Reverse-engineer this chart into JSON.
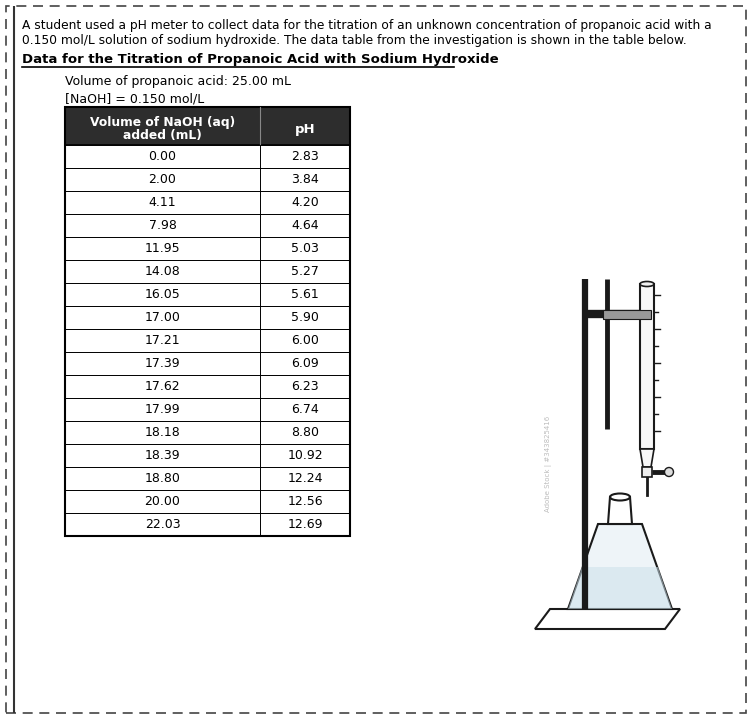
{
  "intro_line1": "A student used a pH meter to collect data for the titration of an unknown concentration of propanoic acid with a",
  "intro_line2": "0.150 mol/L solution of sodium hydroxide. The data table from the investigation is shown in the table below.",
  "title": "Data for the Titration of Propanoic Acid with Sodium Hydroxide",
  "subtitle1": "Volume of propanoic acid: 25.00 mL",
  "subtitle2": "[NaOH] = 0.150 mol/L",
  "col1_header_line1": "Volume of NaOH (aq)",
  "col1_header_line2": "added (mL)",
  "col2_header": "pH",
  "volumes": [
    "0.00",
    "2.00",
    "4.11",
    "7.98",
    "11.95",
    "14.08",
    "16.05",
    "17.00",
    "17.21",
    "17.39",
    "17.62",
    "17.99",
    "18.18",
    "18.39",
    "18.80",
    "20.00",
    "22.03"
  ],
  "phs": [
    "2.83",
    "3.84",
    "4.20",
    "4.64",
    "5.03",
    "5.27",
    "5.61",
    "5.90",
    "6.00",
    "6.09",
    "6.23",
    "6.74",
    "8.80",
    "10.92",
    "12.24",
    "12.56",
    "12.69"
  ],
  "header_bg": "#2d2d2d",
  "header_text_color": "#ffffff",
  "row_bg": "#ffffff",
  "border_color": "#000000",
  "bg_color": "#ffffff",
  "dashed_border_color": "#555555",
  "adobe_text": "Adobe Stock | #343825416"
}
